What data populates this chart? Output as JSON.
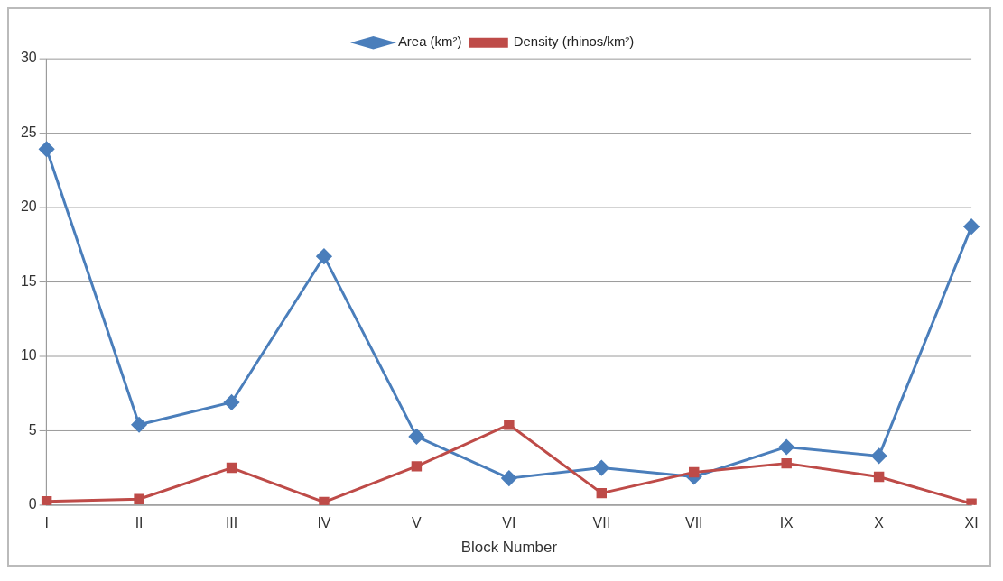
{
  "chart_data": {
    "type": "line",
    "xlabel": "Block Number",
    "categories": [
      "I",
      "II",
      "III",
      "IV",
      "V",
      "VI",
      "VII",
      "VII",
      "IX",
      "X",
      "XI"
    ],
    "series": [
      {
        "name": "Area (km²)",
        "color": "#4a7ebb",
        "marker": "diamond",
        "values": [
          23.9,
          5.4,
          6.9,
          16.7,
          4.6,
          1.8,
          2.5,
          1.9,
          3.9,
          3.3,
          18.7
        ]
      },
      {
        "name": "Density (rhinos/km²)",
        "color": "#be4b48",
        "marker": "square",
        "values": [
          0.25,
          0.4,
          2.5,
          0.2,
          2.6,
          5.4,
          0.8,
          2.2,
          2.8,
          1.9,
          0.1
        ]
      }
    ],
    "ylim": [
      0,
      30
    ],
    "yticks": [
      0,
      5,
      10,
      15,
      20,
      25,
      30
    ],
    "grid": "y",
    "legend": "top",
    "line_style": "solid"
  }
}
